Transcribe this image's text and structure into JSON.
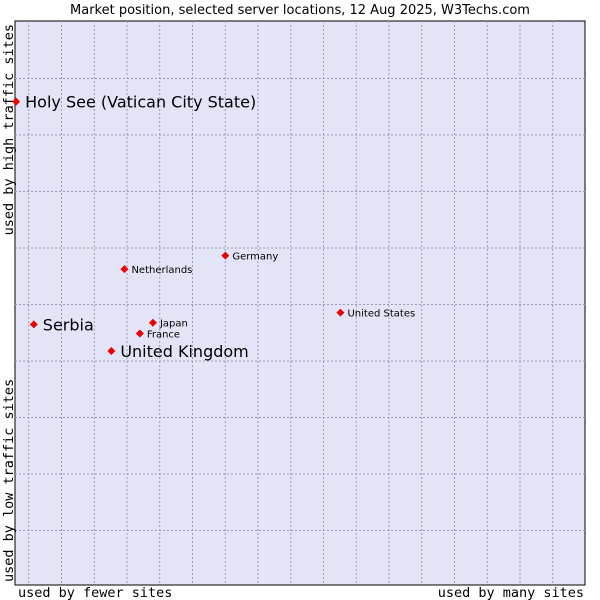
{
  "chart_data": {
    "type": "scatter",
    "title": "Market position, selected server locations, 12 Aug 2025, W3Techs.com",
    "xlabel_left": "used by fewer sites",
    "xlabel_right": "used by many sites",
    "ylabel_bottom": "used by low traffic sites",
    "ylabel_top": "used by high traffic sites",
    "xlim": [
      0,
      100
    ],
    "ylim": [
      0,
      100
    ],
    "grid": true,
    "colors": {
      "plot_bg": "#e4e4f8",
      "marker": "#ee0000",
      "grid": "#9a9ab8"
    },
    "points": [
      {
        "label": "Holy See (Vatican City State)",
        "x": 0.2,
        "y": 85.7,
        "highlight": true
      },
      {
        "label": "Serbia",
        "x": 3.3,
        "y": 46.2,
        "highlight": true
      },
      {
        "label": "United Kingdom",
        "x": 16.9,
        "y": 41.5,
        "highlight": true
      },
      {
        "label": "Germany",
        "x": 36.9,
        "y": 58.4,
        "highlight": false
      },
      {
        "label": "Netherlands",
        "x": 19.2,
        "y": 56.0,
        "highlight": false
      },
      {
        "label": "Japan",
        "x": 24.2,
        "y": 46.5,
        "highlight": false
      },
      {
        "label": "France",
        "x": 21.9,
        "y": 44.6,
        "highlight": false
      },
      {
        "label": "United States",
        "x": 57.1,
        "y": 48.3,
        "highlight": false
      }
    ]
  }
}
